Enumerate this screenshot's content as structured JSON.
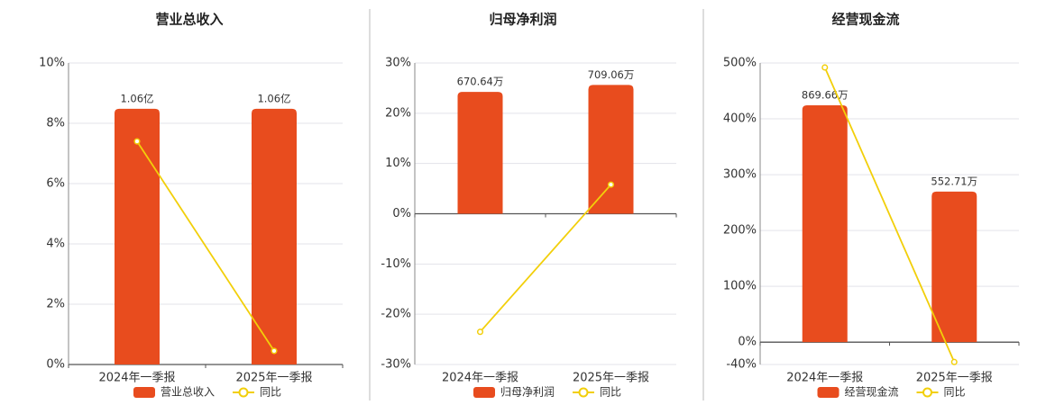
{
  "chart_data": [
    {
      "type": "bar",
      "title": "营业总收入",
      "categories": [
        "2024年一季报",
        "2025年一季报"
      ],
      "series": [
        {
          "name": "营业总收入",
          "color": "#e84c1e",
          "axis": "y2",
          "values": [
            106000000,
            106000000
          ],
          "value_labels": [
            "1.06亿",
            "1.06亿"
          ]
        },
        {
          "name": "同比",
          "color": "#f2cf0a",
          "type": "line",
          "values": [
            7.4,
            0.45
          ]
        }
      ],
      "ylim": [
        0,
        10
      ],
      "yticks": [
        {
          "value": 0,
          "label": "0%"
        },
        {
          "value": 2,
          "label": "2%"
        },
        {
          "value": 4,
          "label": "4%"
        },
        {
          "value": 6,
          "label": "6%"
        },
        {
          "value": 8,
          "label": "8%"
        },
        {
          "value": 10,
          "label": "10%"
        }
      ],
      "y2lim": [
        0,
        125000000
      ],
      "grid": true
    },
    {
      "type": "bar",
      "title": "归母净利润",
      "categories": [
        "2024年一季报",
        "2025年一季报"
      ],
      "series": [
        {
          "name": "归母净利润",
          "color": "#e84c1e",
          "axis": "y2",
          "values": [
            6706400,
            7090600
          ],
          "value_labels": [
            "670.64万",
            "709.06万"
          ]
        },
        {
          "name": "同比",
          "color": "#f2cf0a",
          "type": "line",
          "values": [
            -23.5,
            5.8
          ]
        }
      ],
      "ylim": [
        -30,
        30
      ],
      "yticks": [
        {
          "value": -30,
          "label": "-30%"
        },
        {
          "value": -20,
          "label": "-20%"
        },
        {
          "value": -10,
          "label": "-10%"
        },
        {
          "value": 0,
          "label": "0%"
        },
        {
          "value": 10,
          "label": "10%"
        },
        {
          "value": 20,
          "label": "20%"
        },
        {
          "value": 30,
          "label": "30%"
        }
      ],
      "y2lim": [
        -8300000,
        8300000
      ],
      "grid": true
    },
    {
      "type": "bar",
      "title": "经营现金流",
      "categories": [
        "2024年一季报",
        "2025年一季报"
      ],
      "series": [
        {
          "name": "经营现金流",
          "color": "#e84c1e",
          "axis": "y2",
          "values": [
            8696600,
            5527100
          ],
          "value_labels": [
            "869.66万",
            "552.71万"
          ]
        },
        {
          "name": "同比",
          "color": "#f2cf0a",
          "type": "line",
          "values": [
            492,
            -35.5
          ]
        }
      ],
      "ylim": [
        -40,
        500
      ],
      "yticks": [
        {
          "value": -40,
          "label": "-40%"
        },
        {
          "value": 0,
          "label": "0%"
        },
        {
          "value": 100,
          "label": "100%"
        },
        {
          "value": 200,
          "label": "200%"
        },
        {
          "value": 300,
          "label": "300%"
        },
        {
          "value": 400,
          "label": "400%"
        },
        {
          "value": 500,
          "label": "500%"
        }
      ],
      "y2lim": [
        -820000,
        10250000
      ],
      "grid": true
    }
  ]
}
